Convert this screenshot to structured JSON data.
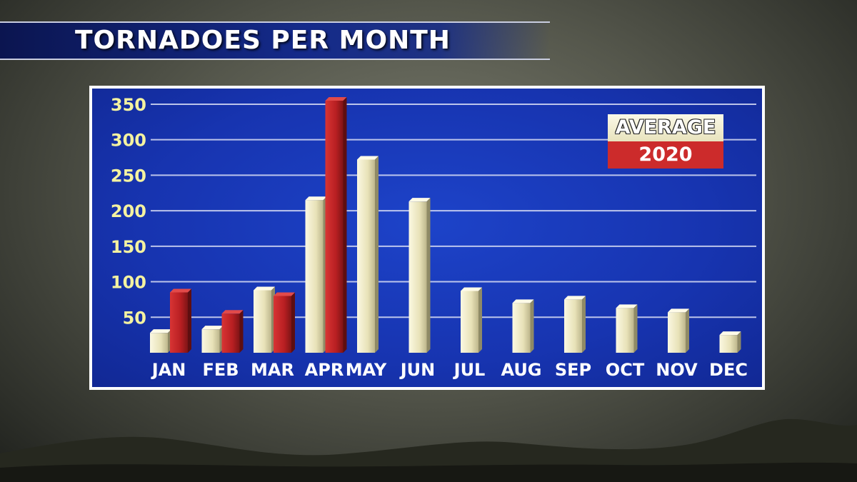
{
  "title": "TORNADOES PER MONTH",
  "legend": {
    "average_label": "AVERAGE",
    "year_label": "2020"
  },
  "colors": {
    "average": "#ece7c3",
    "year_2020": "#c8262b",
    "background": "#1734b0",
    "tick_labels": "#f4f2a0",
    "month_labels": "#ffffff"
  },
  "chart_data": {
    "type": "bar",
    "title": "TORNADOES PER MONTH",
    "categories": [
      "JAN",
      "FEB",
      "MAR",
      "APR",
      "MAY",
      "JUN",
      "JUL",
      "AUG",
      "SEP",
      "OCT",
      "NOV",
      "DEC"
    ],
    "series": [
      {
        "name": "AVERAGE",
        "values": [
          28,
          33,
          88,
          215,
          272,
          213,
          87,
          70,
          75,
          63,
          57,
          25
        ]
      },
      {
        "name": "2020",
        "values": [
          85,
          55,
          80,
          355,
          null,
          null,
          null,
          null,
          null,
          null,
          null,
          null
        ]
      }
    ],
    "yticks": [
      50,
      100,
      150,
      200,
      250,
      300,
      350
    ],
    "ylim": [
      0,
      360
    ],
    "grid": true,
    "legend_position": "top-right"
  }
}
